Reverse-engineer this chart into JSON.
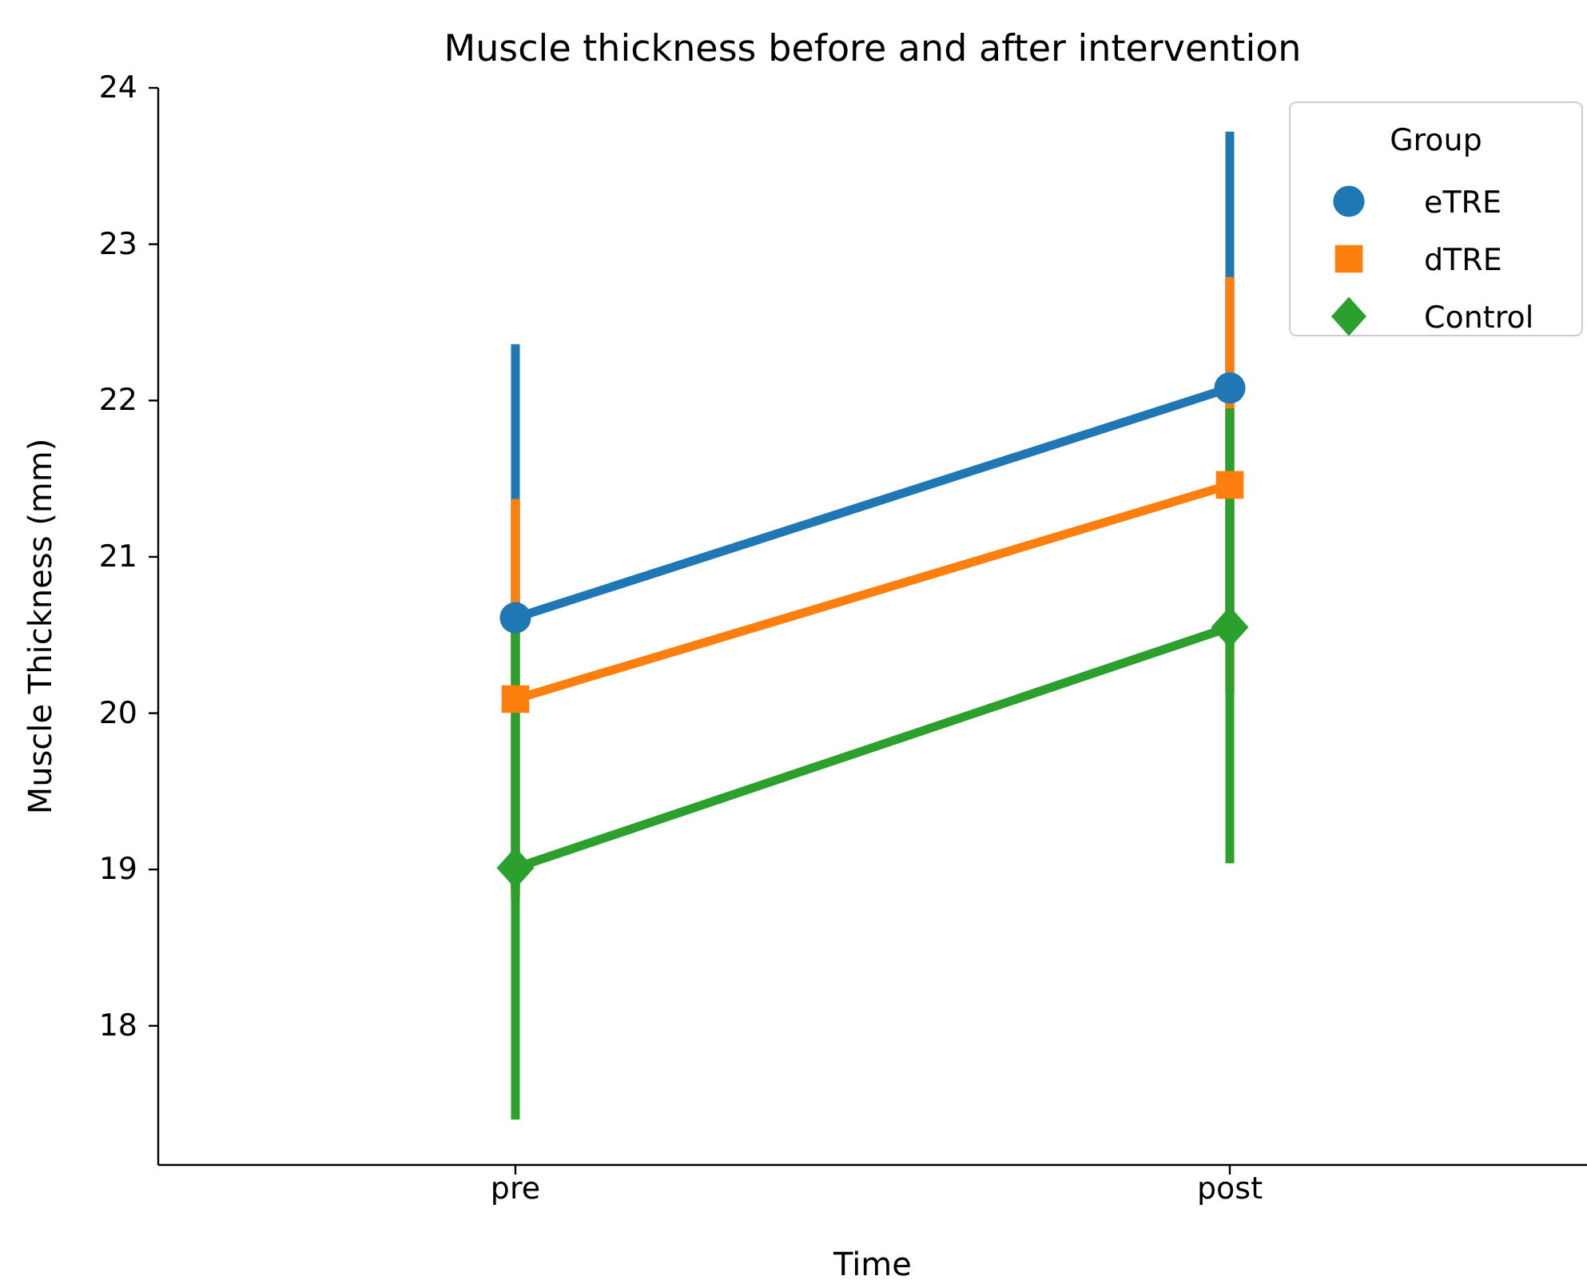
{
  "chart_data": {
    "type": "line",
    "title": "Muscle thickness before and after intervention",
    "xlabel": "Time",
    "ylabel": "Muscle Thickness (mm)",
    "legend_title": "Group",
    "categories": [
      "pre",
      "post"
    ],
    "series": [
      {
        "name": "eTRE",
        "color": "#1f77b4",
        "marker": "circle",
        "values": [
          20.61,
          22.08
        ],
        "errors": [
          [
            18.86,
            22.36
          ],
          [
            20.44,
            23.72
          ]
        ]
      },
      {
        "name": "dTRE",
        "color": "#ff7f0e",
        "marker": "square",
        "values": [
          20.09,
          21.46
        ],
        "errors": [
          [
            18.81,
            21.37
          ],
          [
            20.13,
            22.79
          ]
        ]
      },
      {
        "name": "Control",
        "color": "#2ca02c",
        "marker": "diamond",
        "values": [
          19.01,
          20.55
        ],
        "errors": [
          [
            17.4,
            20.71
          ],
          [
            19.04,
            21.95
          ]
        ]
      }
    ],
    "ylim": [
      17.11,
      24
    ],
    "yticks": [
      18,
      19,
      20,
      21,
      22,
      23,
      24
    ],
    "grid": false,
    "legend": "top right",
    "line_style": "solid"
  }
}
